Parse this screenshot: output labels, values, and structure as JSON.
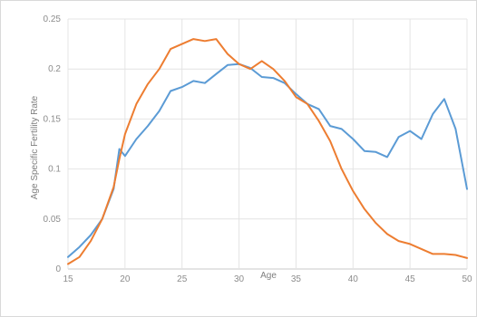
{
  "chart_data": {
    "type": "line",
    "title": "",
    "xlabel": "Age",
    "ylabel": "Age Specific Fertility Rate",
    "xlim": [
      15,
      50
    ],
    "ylim": [
      0,
      0.25
    ],
    "x_ticks": [
      15,
      20,
      25,
      30,
      35,
      40,
      45,
      50
    ],
    "x_tick_labels": [
      "15",
      "20",
      "25",
      "30",
      "35",
      "40",
      "45",
      "50"
    ],
    "y_ticks": [
      0,
      0.05,
      0.1,
      0.15,
      0.2,
      0.25
    ],
    "y_tick_labels": [
      "0",
      "0.05",
      "0.1",
      "0.15",
      "0.2",
      "0.25"
    ],
    "grid": true,
    "legend": "none",
    "series": [
      {
        "color": "#5b9bd5",
        "x": [
          15,
          16,
          17,
          18,
          19,
          19.5,
          20,
          21,
          22,
          23,
          24,
          25,
          26,
          27,
          28,
          29,
          30,
          31,
          32,
          33,
          34,
          35,
          36,
          37,
          38,
          39,
          40,
          41,
          42,
          43,
          44,
          45,
          46,
          47,
          48,
          49,
          50
        ],
        "y": [
          0.012,
          0.022,
          0.034,
          0.05,
          0.08,
          0.12,
          0.113,
          0.13,
          0.143,
          0.158,
          0.178,
          0.182,
          0.188,
          0.186,
          0.195,
          0.204,
          0.205,
          0.201,
          0.192,
          0.191,
          0.186,
          0.175,
          0.165,
          0.16,
          0.143,
          0.14,
          0.13,
          0.118,
          0.117,
          0.112,
          0.132,
          0.138,
          0.13,
          0.155,
          0.17,
          0.14,
          0.08
        ]
      },
      {
        "color": "#ed7d31",
        "x": [
          15,
          16,
          17,
          18,
          19,
          19.5,
          20,
          21,
          22,
          23,
          24,
          25,
          26,
          27,
          28,
          29,
          30,
          31,
          32,
          33,
          34,
          35,
          36,
          37,
          38,
          39,
          40,
          41,
          42,
          43,
          44,
          45,
          46,
          47,
          48,
          49,
          50
        ],
        "y": [
          0.005,
          0.012,
          0.028,
          0.05,
          0.082,
          0.11,
          0.135,
          0.165,
          0.185,
          0.2,
          0.22,
          0.225,
          0.23,
          0.228,
          0.23,
          0.215,
          0.205,
          0.2,
          0.208,
          0.2,
          0.188,
          0.172,
          0.165,
          0.148,
          0.128,
          0.1,
          0.078,
          0.06,
          0.046,
          0.035,
          0.028,
          0.025,
          0.02,
          0.015,
          0.015,
          0.014,
          0.011
        ]
      }
    ]
  }
}
